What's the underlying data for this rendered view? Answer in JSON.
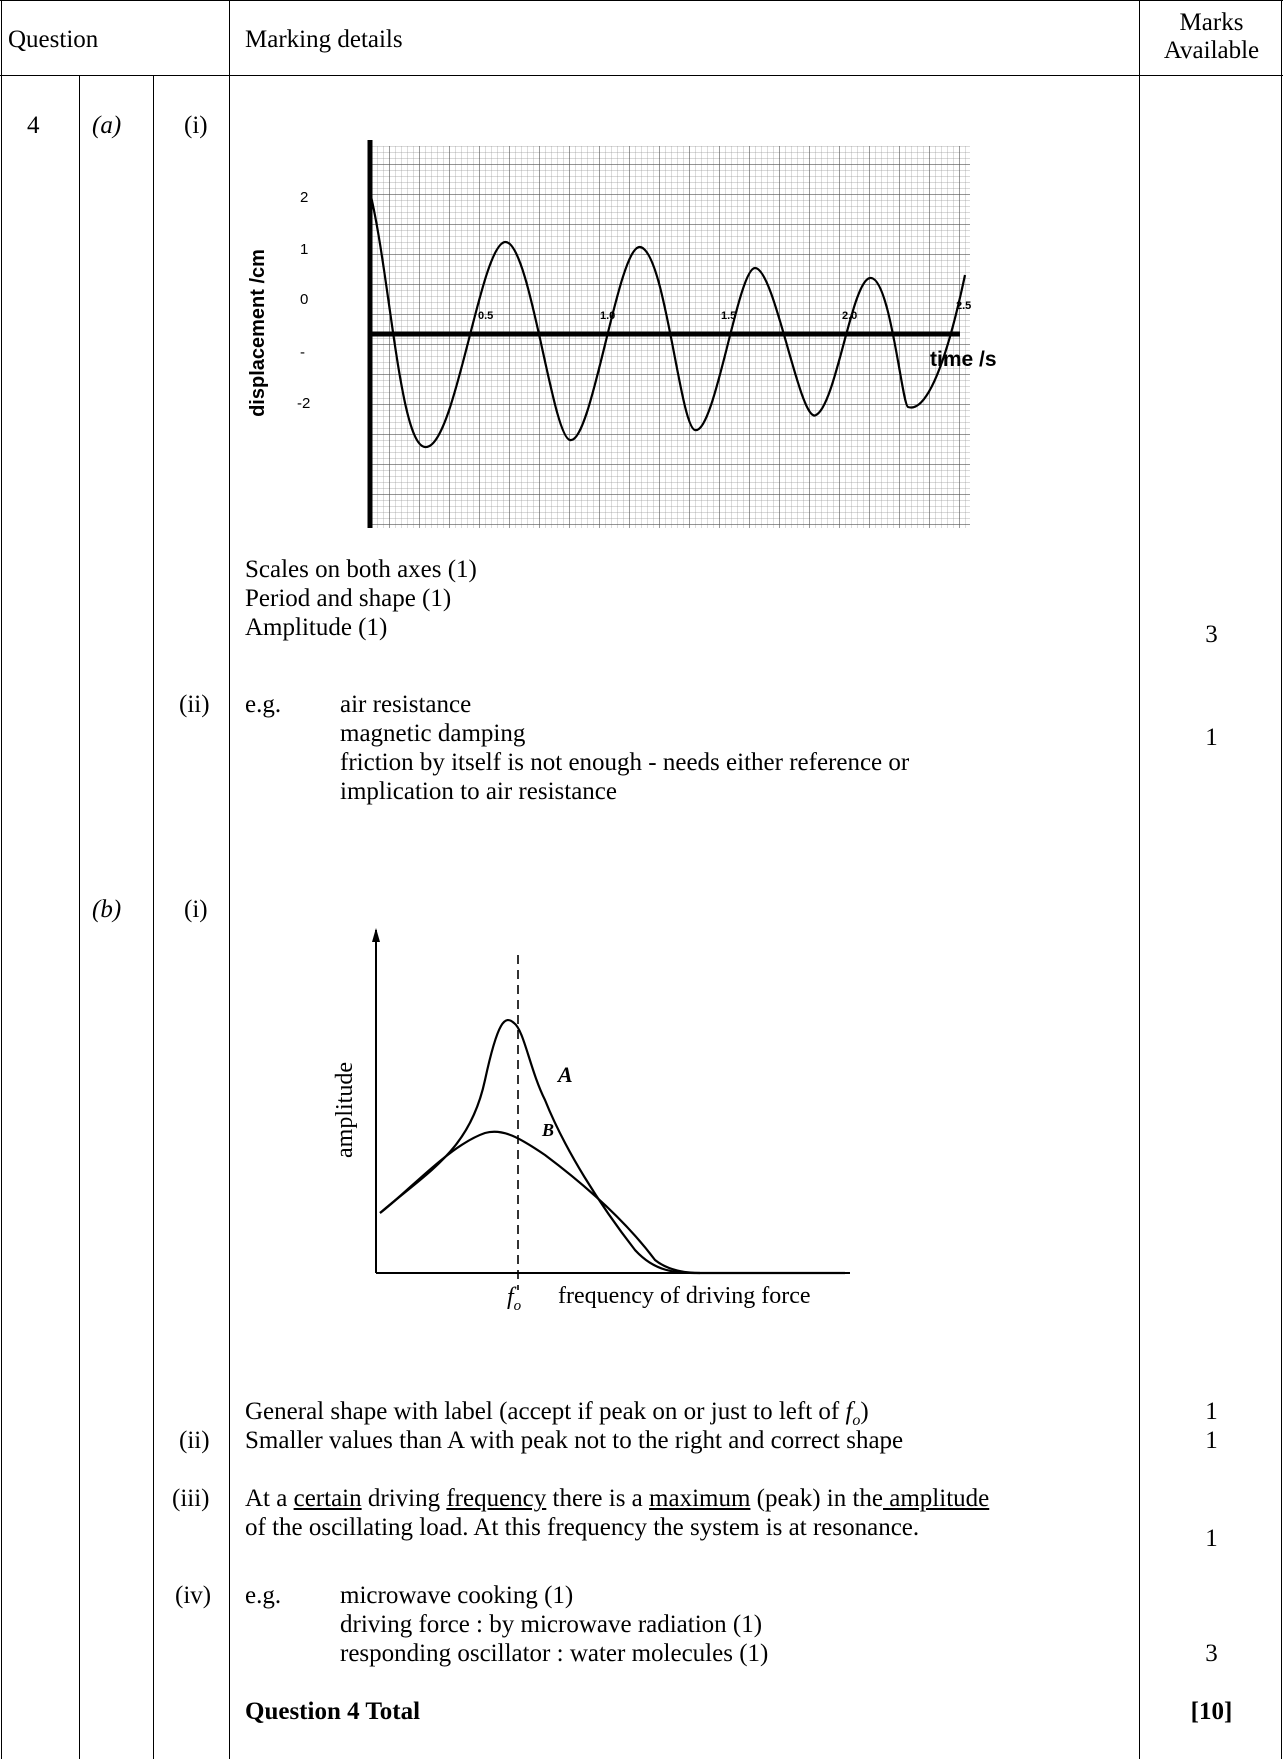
{
  "header": {
    "question": "Question",
    "marking_details": "Marking details",
    "marks_line1": "Marks",
    "marks_line2": "Available"
  },
  "question_number": "4",
  "parts": {
    "a": "(a)",
    "b": "(b)",
    "a_i": "(i)",
    "a_ii": "(ii)",
    "b_i": "(i)",
    "b_ii": "(ii)",
    "b_iii": "(iii)",
    "b_iv": "(iv)"
  },
  "graph_a": {
    "ylabel": "displacement /cm",
    "xlabel": "time /s",
    "y_ticks": [
      "2",
      "1",
      "0",
      "-",
      "-2"
    ],
    "x_ticks": [
      "0.5",
      "1.0",
      "1.5",
      "2.0",
      "2.5"
    ]
  },
  "a_i_points": [
    "Scales on both axes (1)",
    "Period and shape (1)",
    "Amplitude (1)"
  ],
  "a_i_marks": "3",
  "a_ii": {
    "eg": "e.g.",
    "lines": [
      "air resistance",
      "magnetic damping",
      "friction by itself is not enough - needs either reference or",
      "implication to air resistance"
    ],
    "marks": "1"
  },
  "graph_b": {
    "ylabel": "amplitude",
    "xlabel": "frequency of driving force",
    "f0": "f",
    "f0_sub": "o",
    "curve_a": "A",
    "curve_b": "B"
  },
  "b_i_text": "General shape with label (accept if peak on or just to left of ",
  "b_i_f": "f",
  "b_i_sub": "o",
  "b_i_end": ")",
  "b_i_marks": "1",
  "b_ii_text": "Smaller values than A with peak not to the right and correct shape",
  "b_ii_marks": "1",
  "b_iii": {
    "w1": "At a ",
    "u1": "certain",
    "w2": " driving ",
    "u2": "frequency",
    "w3": " there is a ",
    "u3": "maximum",
    "w4": " (peak) in the",
    "u4": " amplitude",
    "line2": "of the oscillating load. At this frequency the system is at resonance.",
    "marks": "1"
  },
  "b_iv": {
    "eg": "e.g.",
    "lines": [
      "microwave cooking (1)",
      "driving force : by microwave radiation (1)",
      "responding oscillator : water molecules (1)"
    ],
    "marks": "3"
  },
  "total_label": "Question 4 Total",
  "total_marks": "[10]"
}
